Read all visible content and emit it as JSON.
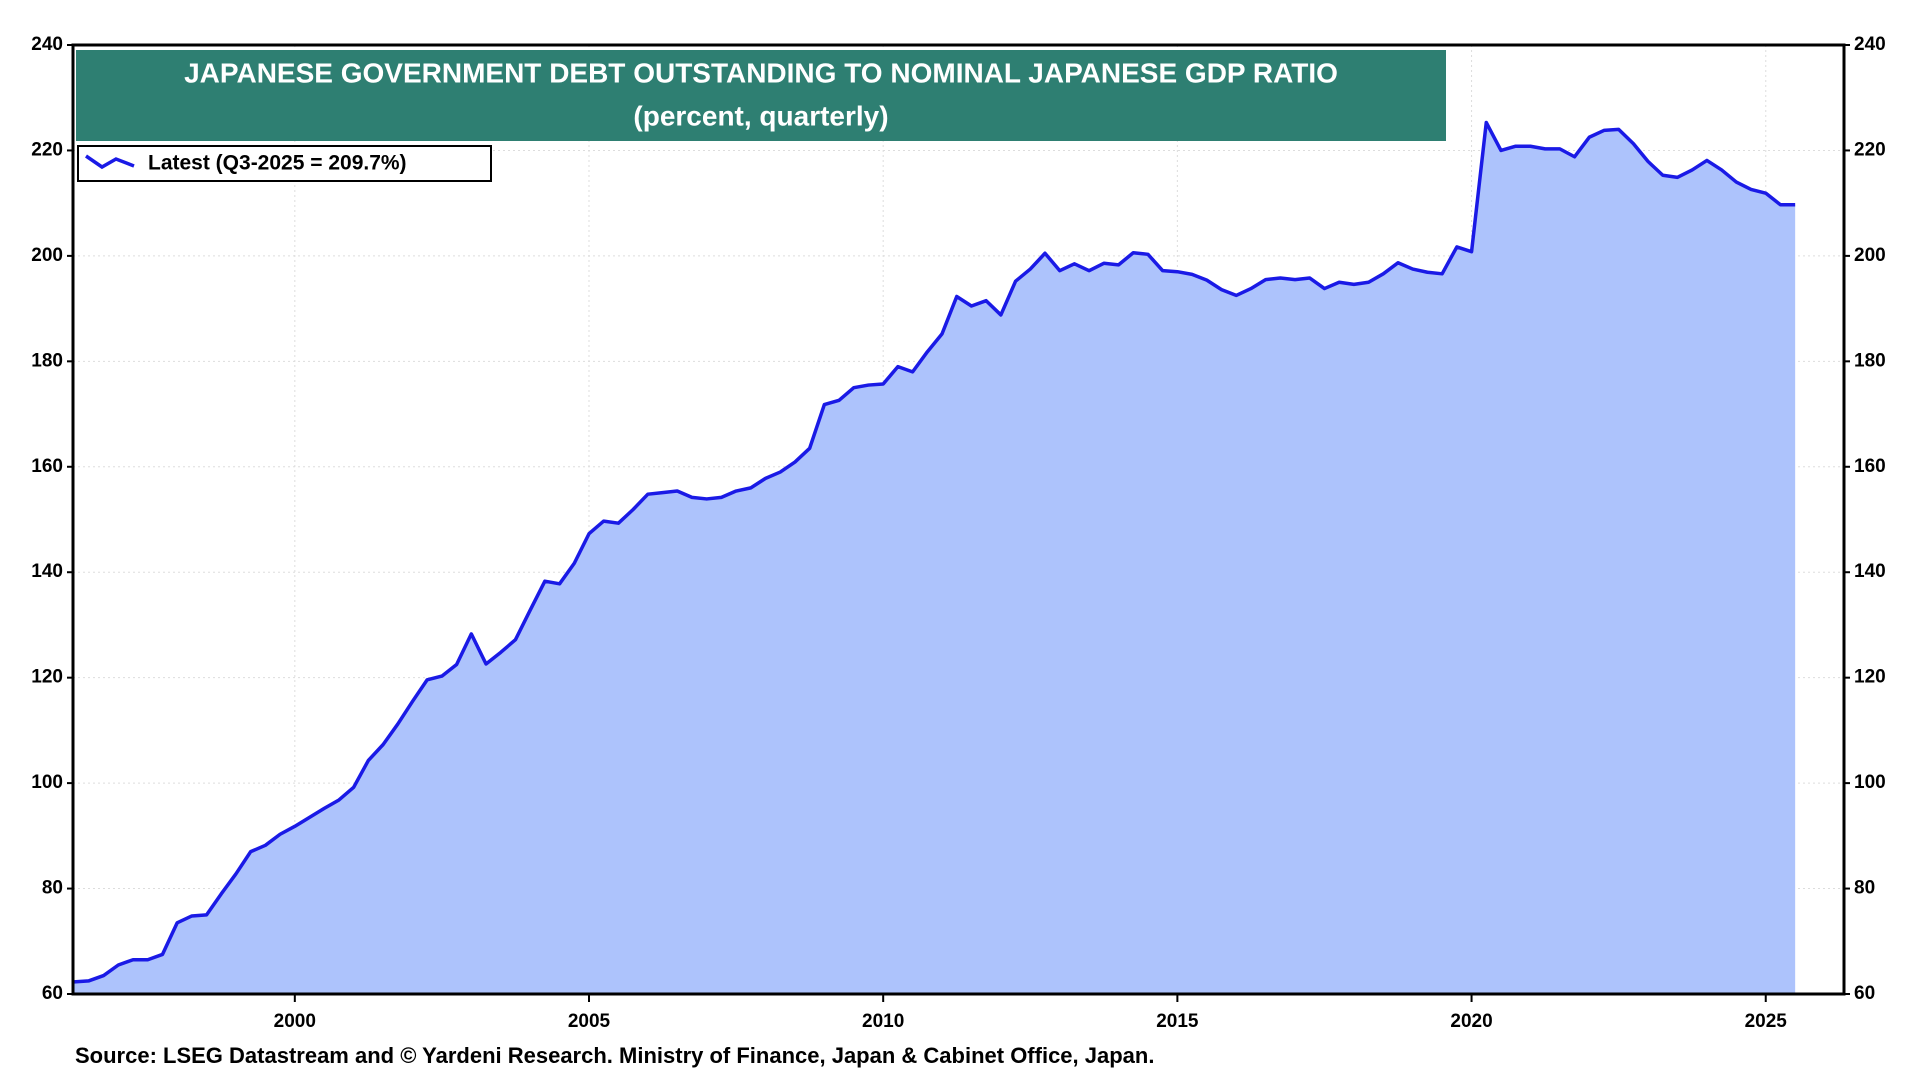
{
  "chart_data": {
    "type": "area",
    "title": "JAPANESE GOVERNMENT DEBT OUTSTANDING TO NOMINAL JAPANESE GDP RATIO",
    "subtitle": "(percent, quarterly)",
    "source": "Source: LSEG Datastream and © Yardeni Research. Ministry of Finance, Japan & Cabinet Office, Japan.",
    "x": [
      1996.25,
      1996.5,
      1996.75,
      1997,
      1997.25,
      1997.5,
      1997.75,
      1998,
      1998.25,
      1998.5,
      1998.75,
      1999,
      1999.25,
      1999.5,
      1999.75,
      2000,
      2000.25,
      2000.5,
      2000.75,
      2001,
      2001.25,
      2001.5,
      2001.75,
      2002,
      2002.25,
      2002.5,
      2002.75,
      2003,
      2003.25,
      2003.5,
      2003.75,
      2004,
      2004.25,
      2004.5,
      2004.75,
      2005,
      2005.25,
      2005.5,
      2005.75,
      2006,
      2006.25,
      2006.5,
      2006.75,
      2007,
      2007.25,
      2007.5,
      2007.75,
      2008,
      2008.25,
      2008.5,
      2008.75,
      2009,
      2009.25,
      2009.5,
      2009.75,
      2010,
      2010.25,
      2010.5,
      2010.75,
      2011,
      2011.25,
      2011.5,
      2011.75,
      2012,
      2012.25,
      2012.5,
      2012.75,
      2013,
      2013.25,
      2013.5,
      2013.75,
      2014,
      2014.25,
      2014.5,
      2014.75,
      2015,
      2015.25,
      2015.5,
      2015.75,
      2016,
      2016.25,
      2016.5,
      2016.75,
      2017,
      2017.25,
      2017.5,
      2017.75,
      2018,
      2018.25,
      2018.5,
      2018.75,
      2019,
      2019.25,
      2019.5,
      2019.75,
      2020,
      2020.25,
      2020.5,
      2020.75,
      2021,
      2021.25,
      2021.5,
      2021.75,
      2022,
      2022.25,
      2022.5,
      2022.75,
      2023,
      2023.25,
      2023.5,
      2023.75,
      2024,
      2024.25,
      2024.5,
      2024.75,
      2025,
      2025.25,
      2025.5
    ],
    "series": [
      {
        "name": "Latest (Q3-2025 = 209.7%)",
        "color": "#1a1ae6",
        "fill": "#adc3fc",
        "values": [
          62.3,
          62.5,
          63.5,
          65.5,
          66.5,
          66.5,
          67.5,
          73.5,
          74.8,
          75,
          79,
          82.8,
          87,
          88.2,
          90.3,
          91.8,
          93.5,
          95.2,
          96.8,
          99.2,
          104.3,
          107.3,
          111.2,
          115.5,
          119.6,
          120.3,
          122.5,
          128.3,
          122.6,
          124.8,
          127.2,
          132.8,
          138.3,
          137.8,
          141.7,
          147.3,
          149.7,
          149.3,
          151.9,
          154.8,
          155.1,
          155.4,
          154.2,
          153.9,
          154.2,
          155.4,
          156,
          157.8,
          159,
          160.9,
          163.5,
          171.8,
          172.6,
          175,
          175.5,
          175.7,
          179,
          178,
          181.8,
          185.2,
          192.3,
          190.5,
          191.5,
          188.8,
          195.2,
          197.5,
          200.5,
          197.2,
          198.5,
          197.2,
          198.6,
          198.3,
          200.6,
          200.3,
          197.2,
          197,
          196.5,
          195.4,
          193.6,
          192.5,
          193.8,
          195.5,
          195.8,
          195.5,
          195.8,
          193.8,
          195,
          194.6,
          195,
          196.6,
          198.7,
          197.5,
          196.9,
          196.6,
          201.7,
          200.8,
          225.3,
          220,
          220.8,
          220.8,
          220.3,
          220.3,
          218.8,
          222.5,
          223.8,
          224,
          221.3,
          217.9,
          215.3,
          214.9,
          216.3,
          218.1,
          216.3,
          214,
          212.6,
          211.9,
          209.7,
          209.7
        ]
      }
    ],
    "xlim": [
      1996.23,
      2026.33
    ],
    "xticks": [
      2000,
      2005,
      2010,
      2015,
      2020,
      2025
    ],
    "ylim": [
      60,
      240
    ],
    "yticks": [
      60,
      80,
      100,
      120,
      140,
      160,
      180,
      200,
      220,
      240
    ],
    "grid": true,
    "legend": "upper left"
  }
}
